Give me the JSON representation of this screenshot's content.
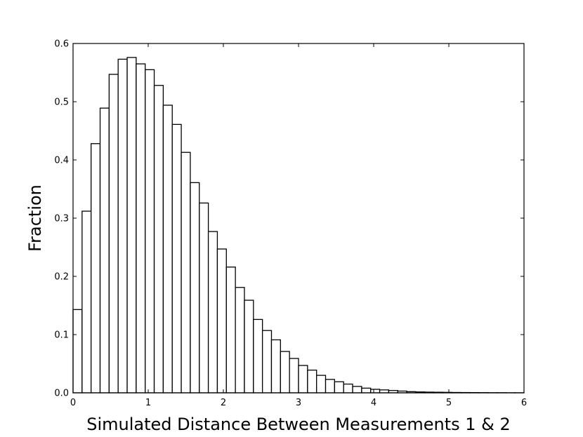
{
  "chart_data": {
    "type": "bar",
    "title": "",
    "xlabel": "Simulated Distance Between Measurements 1 & 2",
    "ylabel": "Fraction",
    "xlim": [
      0,
      6
    ],
    "ylim": [
      0,
      0.6
    ],
    "grid": false,
    "bin_width": 0.12,
    "bin_edges_start": 0,
    "x_ticks": [
      0,
      1,
      2,
      3,
      4,
      5,
      6
    ],
    "x_tick_labels": [
      "0",
      "1",
      "2",
      "3",
      "4",
      "5",
      "6"
    ],
    "y_ticks": [
      0.0,
      0.1,
      0.2,
      0.3,
      0.4,
      0.5,
      0.6
    ],
    "y_tick_labels": [
      "0.0",
      "0.1",
      "0.2",
      "0.3",
      "0.4",
      "0.5",
      "0.6"
    ],
    "values": [
      0.143,
      0.312,
      0.428,
      0.489,
      0.547,
      0.573,
      0.576,
      0.565,
      0.555,
      0.528,
      0.494,
      0.461,
      0.413,
      0.361,
      0.326,
      0.277,
      0.247,
      0.216,
      0.181,
      0.159,
      0.126,
      0.107,
      0.091,
      0.071,
      0.059,
      0.047,
      0.039,
      0.03,
      0.023,
      0.019,
      0.015,
      0.011,
      0.008,
      0.006,
      0.005,
      0.004,
      0.003,
      0.002,
      0.0015,
      0.0012,
      0.001,
      0.0008,
      0.0006,
      0.0005,
      0.0004,
      0.0003,
      0.0002,
      0.0002,
      0.0001,
      0.0001
    ]
  }
}
